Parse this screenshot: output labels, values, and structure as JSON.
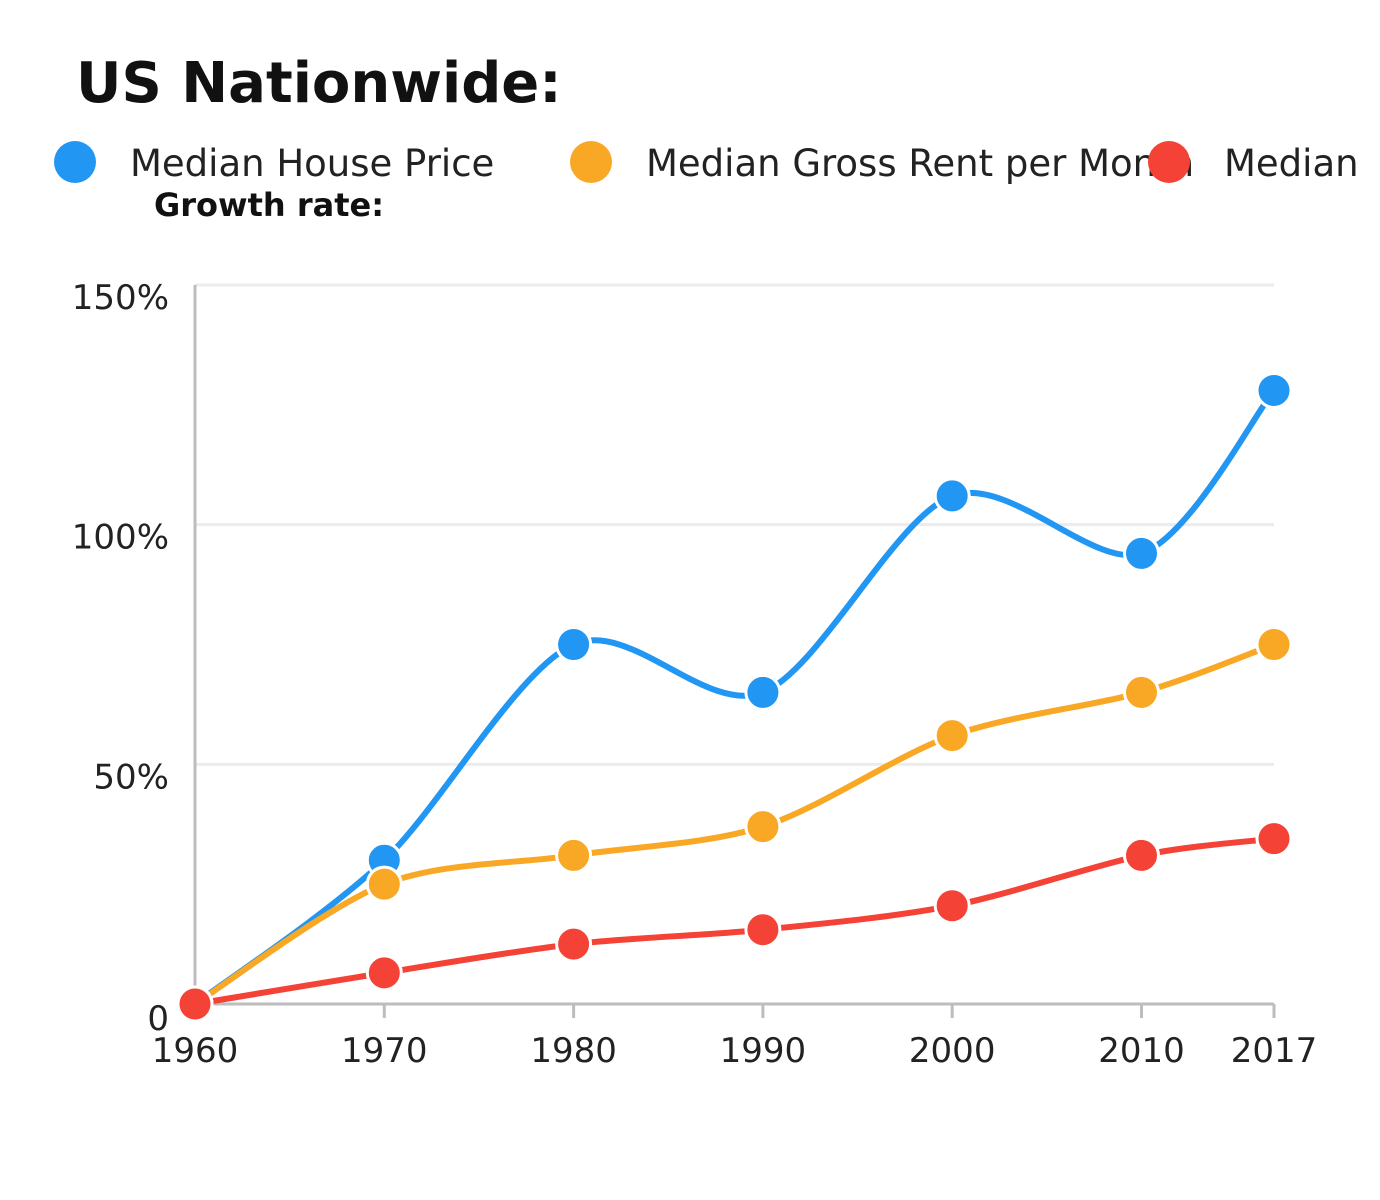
{
  "title": "US Nationwide:",
  "subtitle": "Growth rate:",
  "chart_data": {
    "type": "line",
    "title": "US Nationwide:",
    "subtitle": "Growth rate:",
    "x": [
      1960,
      1970,
      1980,
      1990,
      2000,
      2010,
      2017
    ],
    "x_tick_labels": [
      "1960",
      "1970",
      "1980",
      "1990",
      "2000",
      "2010",
      "2017"
    ],
    "xlim": [
      1960,
      2017
    ],
    "ylim": [
      0,
      150
    ],
    "y_ticks": [
      0,
      50,
      100,
      150
    ],
    "y_tick_labels": [
      "0",
      "50%",
      "100%",
      "150%"
    ],
    "grid": "horizontal",
    "legend_position": "top",
    "series": [
      {
        "name": "Median House Price",
        "color": "#2196f3",
        "values": [
          0,
          30,
          75,
          65,
          106,
          94,
          128
        ]
      },
      {
        "name": "Median Gross Rent per Month",
        "color": "#f9a825",
        "values": [
          0,
          25,
          31,
          37,
          56,
          65,
          75
        ]
      },
      {
        "name": "Median",
        "color": "#f44336",
        "values": [
          0,
          6.5,
          12.5,
          15.5,
          20.5,
          31,
          34.5
        ]
      }
    ]
  }
}
